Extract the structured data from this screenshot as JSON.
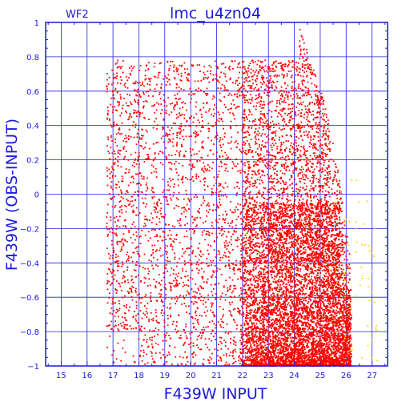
{
  "chart_data": {
    "type": "scatter",
    "title": "lmc_u4zn04",
    "subtitle": "WF2",
    "xlabel": "F439W INPUT",
    "ylabel": "F439W (OBS-INPUT)",
    "xlim": [
      14.4,
      27.6
    ],
    "ylim": [
      -1,
      1
    ],
    "xticks": [
      15,
      16,
      17,
      18,
      19,
      20,
      21,
      22,
      23,
      24,
      25,
      26,
      27
    ],
    "yticks": [
      -1,
      -0.8,
      -0.6,
      -0.4,
      -0.2,
      0,
      0.2,
      0.4,
      0.6,
      0.8,
      1
    ],
    "xtick_labels": [
      "15",
      "16",
      "17",
      "18",
      "19",
      "20",
      "21",
      "22",
      "23",
      "24",
      "25",
      "26",
      "27"
    ],
    "ytick_labels": [
      "−1",
      "−0.8",
      "−0.6",
      "−0.4",
      "−0.2",
      "0",
      "0.2",
      "0.4",
      "0.6",
      "0.8",
      "1"
    ],
    "grid": true,
    "series": [
      {
        "color": "#ff0000",
        "x_range": [
          16.7,
          26.3
        ],
        "y_range": [
          -1,
          0.97
        ]
      },
      {
        "color": "#ffd700",
        "x_range": [
          21.5,
          27.2
        ],
        "y_range": [
          -1,
          0.2
        ]
      }
    ]
  },
  "colors": {
    "axis": "#1a1adc",
    "grid": "#2020e0",
    "points": "#ff0000",
    "outliers": "#ffd700"
  }
}
